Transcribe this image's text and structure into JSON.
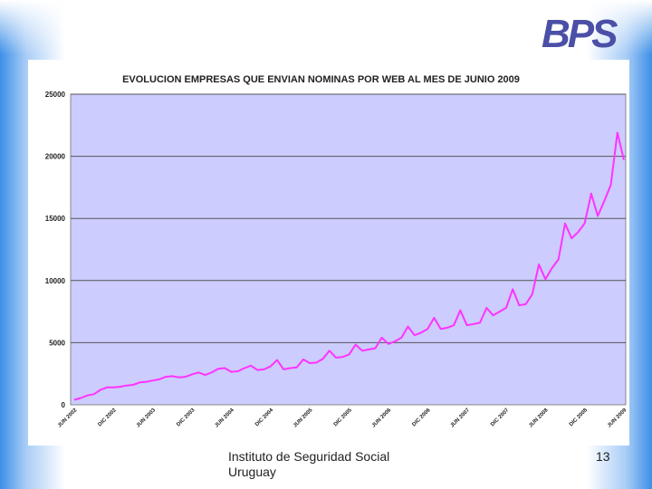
{
  "brand": {
    "logo_text": "BPS",
    "logo_color": "#4b4fa6"
  },
  "footer": {
    "institution_line1": "Instituto de Seguridad Social",
    "institution_line2": "Uruguay",
    "page_number": "13"
  },
  "chart_data": {
    "type": "line",
    "title": "EVOLUCION EMPRESAS QUE ENVIAN NOMINAS POR WEB AL MES DE JUNIO 2009",
    "xlabel": "",
    "ylabel": "",
    "ylim": [
      0,
      25000
    ],
    "yticks": [
      0,
      5000,
      10000,
      15000,
      20000,
      25000
    ],
    "grid": "horizontal",
    "plot_background": "#ccccff",
    "line_color": "#ff33ff",
    "x_tick_labels": [
      "JUN 2002",
      "DIC 2002",
      "JUN 2003",
      "DIC 2003",
      "JUN 2004",
      "DIC 2004",
      "JUN 2005",
      "DIC 2005",
      "JUN 2006",
      "DIC 2006",
      "JUN 2007",
      "DIC 2007",
      "JUN 2008",
      "DIC 2008",
      "JUN 2009"
    ],
    "series": [
      {
        "values": [
          400,
          550,
          750,
          850,
          1200,
          1400,
          1400,
          1450,
          1550,
          1600,
          1800,
          1850,
          1950,
          2050,
          2250,
          2300,
          2200,
          2250,
          2450,
          2600,
          2400,
          2600,
          2900,
          2950,
          2650,
          2700,
          2950,
          3150,
          2800,
          2850,
          3100,
          3600,
          2850,
          2950,
          3000,
          3650,
          3350,
          3400,
          3700,
          4350,
          3800,
          3850,
          4050,
          4850,
          4350,
          4450,
          4550,
          5400,
          4900,
          5100,
          5400,
          6300,
          5600,
          5800,
          6100,
          7000,
          6100,
          6200,
          6400,
          7600,
          6400,
          6500,
          6600,
          7800,
          7200,
          7500,
          7800,
          9300,
          8000,
          8100,
          8900,
          11300,
          10100,
          11000,
          11700,
          14600,
          13400,
          13900,
          14600,
          17000,
          15200,
          16400,
          17700,
          21900,
          19700
        ]
      }
    ]
  }
}
